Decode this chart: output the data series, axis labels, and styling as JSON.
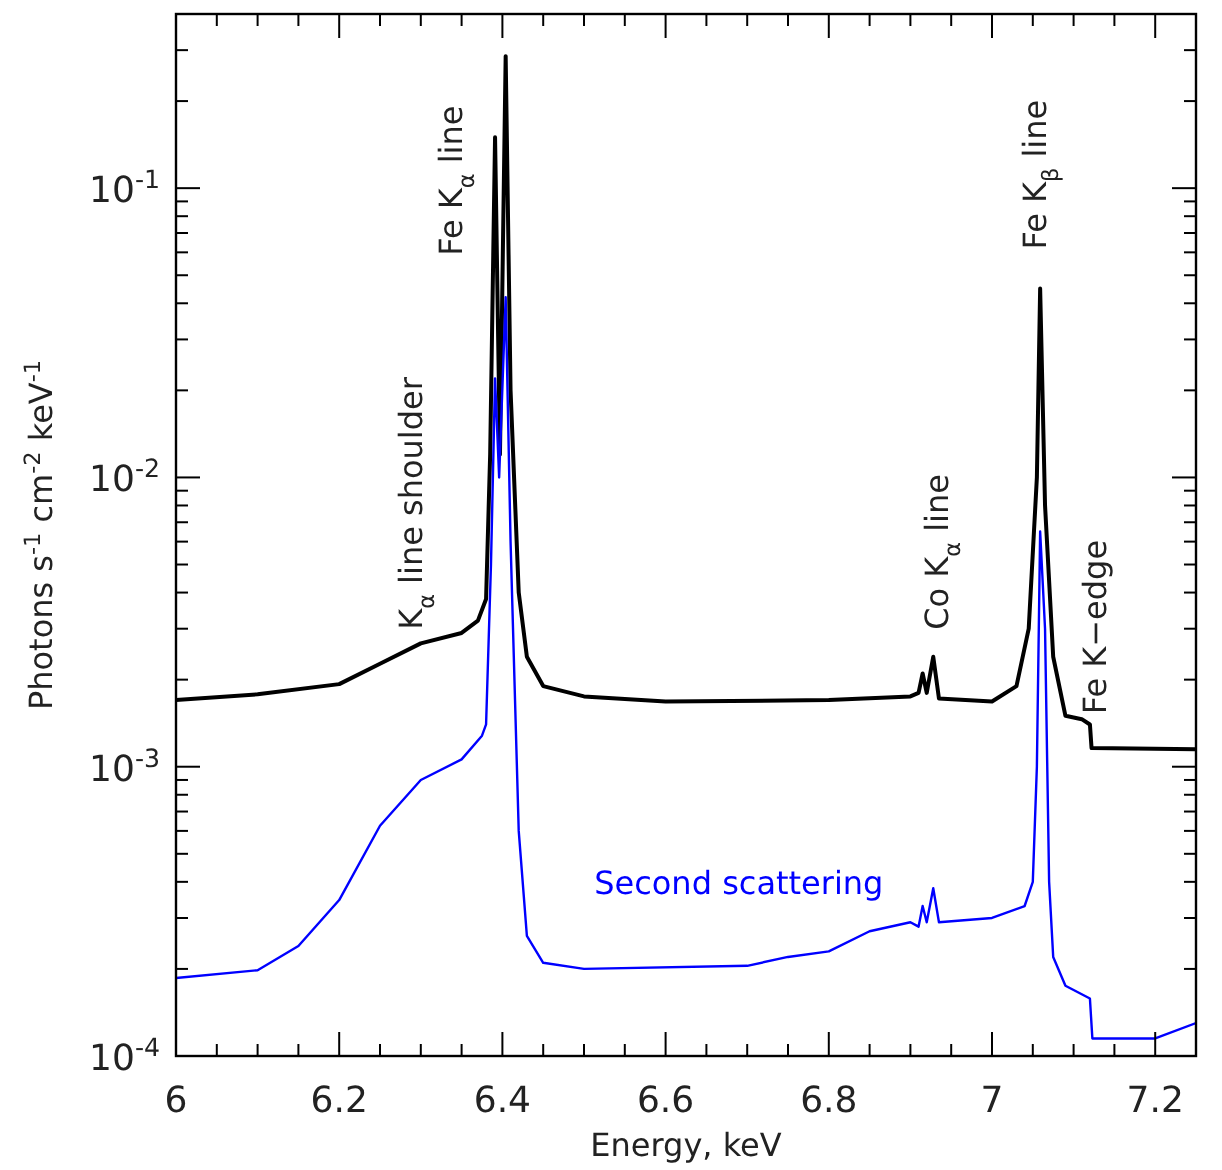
{
  "chart_data": {
    "type": "line",
    "xlabel": "Energy, keV",
    "ylabel": "Photons s$^{-1}$ cm$^{-2}$ keV$^{-1}$",
    "log": "y",
    "grid": false,
    "legend": false,
    "marker": "none",
    "line_style": "solid",
    "xlim": [
      6,
      7.25
    ],
    "ylim": [
      0.0001,
      0.4
    ],
    "xticks": [
      6,
      {
        "value": 6.05,
        "label": null
      },
      {
        "value": 6.1,
        "label": null
      },
      {
        "value": 6.15,
        "label": null
      },
      6.2,
      {
        "value": 6.25,
        "label": null
      },
      {
        "value": 6.3,
        "label": null
      },
      {
        "value": 6.35,
        "label": null
      },
      6.4,
      {
        "value": 6.45,
        "label": null
      },
      {
        "value": 6.5,
        "label": null
      },
      {
        "value": 6.55,
        "label": null
      },
      6.6,
      {
        "value": 6.65,
        "label": null
      },
      {
        "value": 6.7,
        "label": null
      },
      {
        "value": 6.75,
        "label": null
      },
      6.8,
      {
        "value": 6.85,
        "label": null
      },
      {
        "value": 6.9,
        "label": null
      },
      {
        "value": 6.95,
        "label": null
      },
      7,
      {
        "value": 7.05,
        "label": null
      },
      {
        "value": 7.1,
        "label": null
      },
      {
        "value": 7.15,
        "label": null
      },
      7.2
    ],
    "yticks": [
      {
        "value": 0.0001,
        "label": "10$^{-4}$"
      },
      {
        "value": 0.0002,
        "label": null
      },
      {
        "value": 0.0003,
        "label": null
      },
      {
        "value": 0.0004,
        "label": null
      },
      {
        "value": 0.0005,
        "label": null
      },
      {
        "value": 0.0006,
        "label": null
      },
      {
        "value": 0.0007,
        "label": null
      },
      {
        "value": 0.0008,
        "label": null
      },
      {
        "value": 0.0009,
        "label": null
      },
      {
        "value": 0.001,
        "label": "10$^{-3}$"
      },
      {
        "value": 0.002,
        "label": null
      },
      {
        "value": 0.003,
        "label": null
      },
      {
        "value": 0.004,
        "label": null
      },
      {
        "value": 0.005,
        "label": null
      },
      {
        "value": 0.006,
        "label": null
      },
      {
        "value": 0.007,
        "label": null
      },
      {
        "value": 0.008,
        "label": null
      },
      {
        "value": 0.009,
        "label": null
      },
      {
        "value": 0.01,
        "label": "10$^{-2}$"
      },
      {
        "value": 0.02,
        "label": null
      },
      {
        "value": 0.03,
        "label": null
      },
      {
        "value": 0.04,
        "label": null
      },
      {
        "value": 0.05,
        "label": null
      },
      {
        "value": 0.06,
        "label": null
      },
      {
        "value": 0.07,
        "label": null
      },
      {
        "value": 0.08,
        "label": null
      },
      {
        "value": 0.09,
        "label": null
      },
      {
        "value": 0.1,
        "label": "10$^{-1}$"
      },
      {
        "value": 0.2,
        "label": null
      },
      {
        "value": 0.3,
        "label": null
      },
      {
        "value": 0.4,
        "label": null
      }
    ],
    "series": [
      {
        "color": "#000000",
        "x": [
          6,
          6.1,
          6.2,
          6.25,
          6.3,
          6.35,
          6.37,
          6.38,
          6.385,
          6.391,
          6.397,
          6.404,
          6.41,
          6.42,
          6.43,
          6.45,
          6.5,
          6.6,
          6.8,
          6.9,
          6.91,
          6.915,
          6.92,
          6.928,
          6.935,
          7,
          7.03,
          7.045,
          7.055,
          7.059,
          7.065,
          7.075,
          7.09,
          7.11,
          7.12,
          7.122,
          7.25
        ],
        "values": [
          0.0017,
          0.00178,
          0.00193,
          0.00227,
          0.00267,
          0.0029,
          0.0032,
          0.0038,
          0.012,
          0.15,
          0.012,
          0.286,
          0.02,
          0.004,
          0.0024,
          0.0019,
          0.00175,
          0.00168,
          0.0017,
          0.00175,
          0.0018,
          0.0021,
          0.0018,
          0.0024,
          0.00172,
          0.00168,
          0.0019,
          0.003,
          0.01,
          0.045,
          0.008,
          0.0024,
          0.0015,
          0.00146,
          0.0014,
          0.00116,
          0.00115
        ]
      },
      {
        "name": "Second scattering",
        "color": "#0000ff",
        "x": [
          6,
          6.1,
          6.15,
          6.2,
          6.25,
          6.3,
          6.35,
          6.375,
          6.38,
          6.386,
          6.391,
          6.396,
          6.404,
          6.41,
          6.42,
          6.43,
          6.45,
          6.5,
          6.7,
          6.75,
          6.8,
          6.85,
          6.9,
          6.91,
          6.915,
          6.92,
          6.928,
          6.935,
          7,
          7.04,
          7.05,
          7.055,
          7.059,
          7.065,
          7.07,
          7.075,
          7.09,
          7.12,
          7.123,
          7.2,
          7.25
        ],
        "values": [
          0.000186,
          0.000198,
          0.00024,
          0.000346,
          0.000625,
          0.0009,
          0.00106,
          0.00128,
          0.0014,
          0.005,
          0.022,
          0.01,
          0.042,
          0.006,
          0.0006,
          0.00026,
          0.00021,
          0.0002,
          0.000205,
          0.00022,
          0.00023,
          0.00027,
          0.00029,
          0.00028,
          0.00033,
          0.00029,
          0.00038,
          0.00029,
          0.0003,
          0.00033,
          0.0004,
          0.001,
          0.0065,
          0.003,
          0.0004,
          0.00022,
          0.000175,
          0.000158,
          0.000115,
          0.000115,
          0.00013
        ]
      }
    ],
    "annotations": [
      "K$_{α}$ line shoulder",
      "Fe K$_{α}$ line",
      "Co K$_{α}$ line",
      "Fe K$_{β}$ line",
      "Fe K−edge"
    ]
  }
}
